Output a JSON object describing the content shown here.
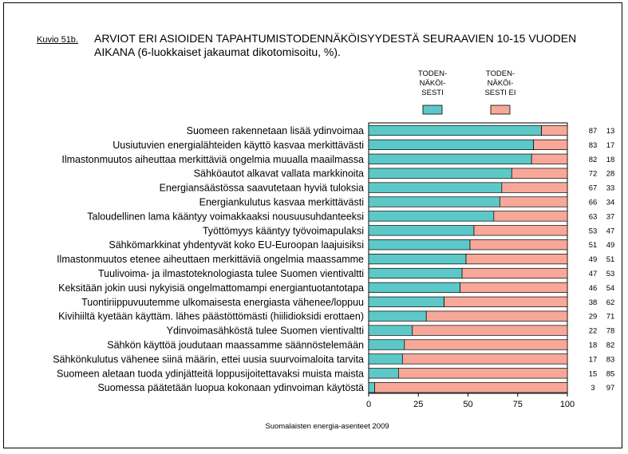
{
  "figure": {
    "label": "Kuvio 51b.",
    "title": "ARVIOT ERI ASIOIDEN TAPAHTUMISTODENNÄKÖISYYDESTÄ SEURAAVIEN 10-15 VUODEN AIKANA (6-luokkaiset jakaumat dikotomisoitu, %).",
    "source": "Suomalaisten energia-asenteet 2009"
  },
  "colors": {
    "yes": "#5cc9c8",
    "no": "#f7a898"
  },
  "chart_data": {
    "type": "bar",
    "orientation": "horizontal",
    "stacked": true,
    "title": "ARVIOT ERI ASIOIDEN TAPAHTUMISTODENNÄKÖISYYDESTÄ SEURAAVIEN 10-15 VUODEN AIKANA (6-luokkaiset jakaumat dikotomisoitu, %).",
    "xlim": [
      0,
      100
    ],
    "xticks": [
      0,
      25,
      50,
      75,
      100
    ],
    "legend_position": "top-right",
    "series": [
      {
        "name": "yes",
        "legend": [
          "TODEN-",
          "NÄKÖI-",
          "SESTI"
        ]
      },
      {
        "name": "no",
        "legend": [
          "TODEN-",
          "NÄKÖI-",
          "SESTI EI"
        ]
      }
    ],
    "categories": [
      "Suomeen rakennetaan lisää ydinvoimaa",
      "Uusiutuvien energialähteiden käyttö kasvaa merkittävästi",
      "Ilmastonmuutos aiheuttaa merkittäviä ongelmia muualla maailmassa",
      "Sähköautot alkavat vallata markkinoita",
      "Energiansäästössa saavutetaan hyviä tuloksia",
      "Energiankulutus kasvaa merkittävästi",
      "Taloudellinen lama kääntyy voimakkaaksi nousuusuhdanteeksi",
      "Työttömyys kääntyy työvoimapulaksi",
      "Sähkömarkkinat yhdentyvät koko EU-Euroopan laajuisiksi",
      "Ilmastonmuutos etenee aiheuttaen merkittäviä ongelmia maassamme",
      "Tuulivoima- ja ilmastoteknologiasta tulee Suomen vientivaltti",
      "Keksitään jokin uusi nykyisiä ongelmattomampi energiantuotantotapa",
      "Tuontiriippuvuutemme ulkomaisesta energiasta vähenee/loppuu",
      "Kivihiiltä kyetään käyttäm. lähes päästöttömästi (hiilidioksidi erottaen)",
      "Ydinvoimasähköstä tulee Suomen vientivaltti",
      "Sähkön käyttöä joudutaan maassamme säännöstelemään",
      "Sähkönkulutus vähenee siinä määrin, ettei uusia suurvoimaloita tarvita",
      "Suomeen aletaan tuoda ydinjätteitä loppusijoitettavaksi muista maista",
      "Suomessa päätetään luopua kokonaan ydinvoiman käytöstä"
    ],
    "yes": [
      87,
      83,
      82,
      72,
      67,
      66,
      63,
      53,
      51,
      49,
      47,
      46,
      38,
      29,
      22,
      18,
      17,
      15,
      3
    ],
    "no": [
      13,
      17,
      18,
      28,
      33,
      34,
      37,
      47,
      49,
      51,
      53,
      54,
      62,
      71,
      78,
      82,
      83,
      85,
      97
    ]
  }
}
